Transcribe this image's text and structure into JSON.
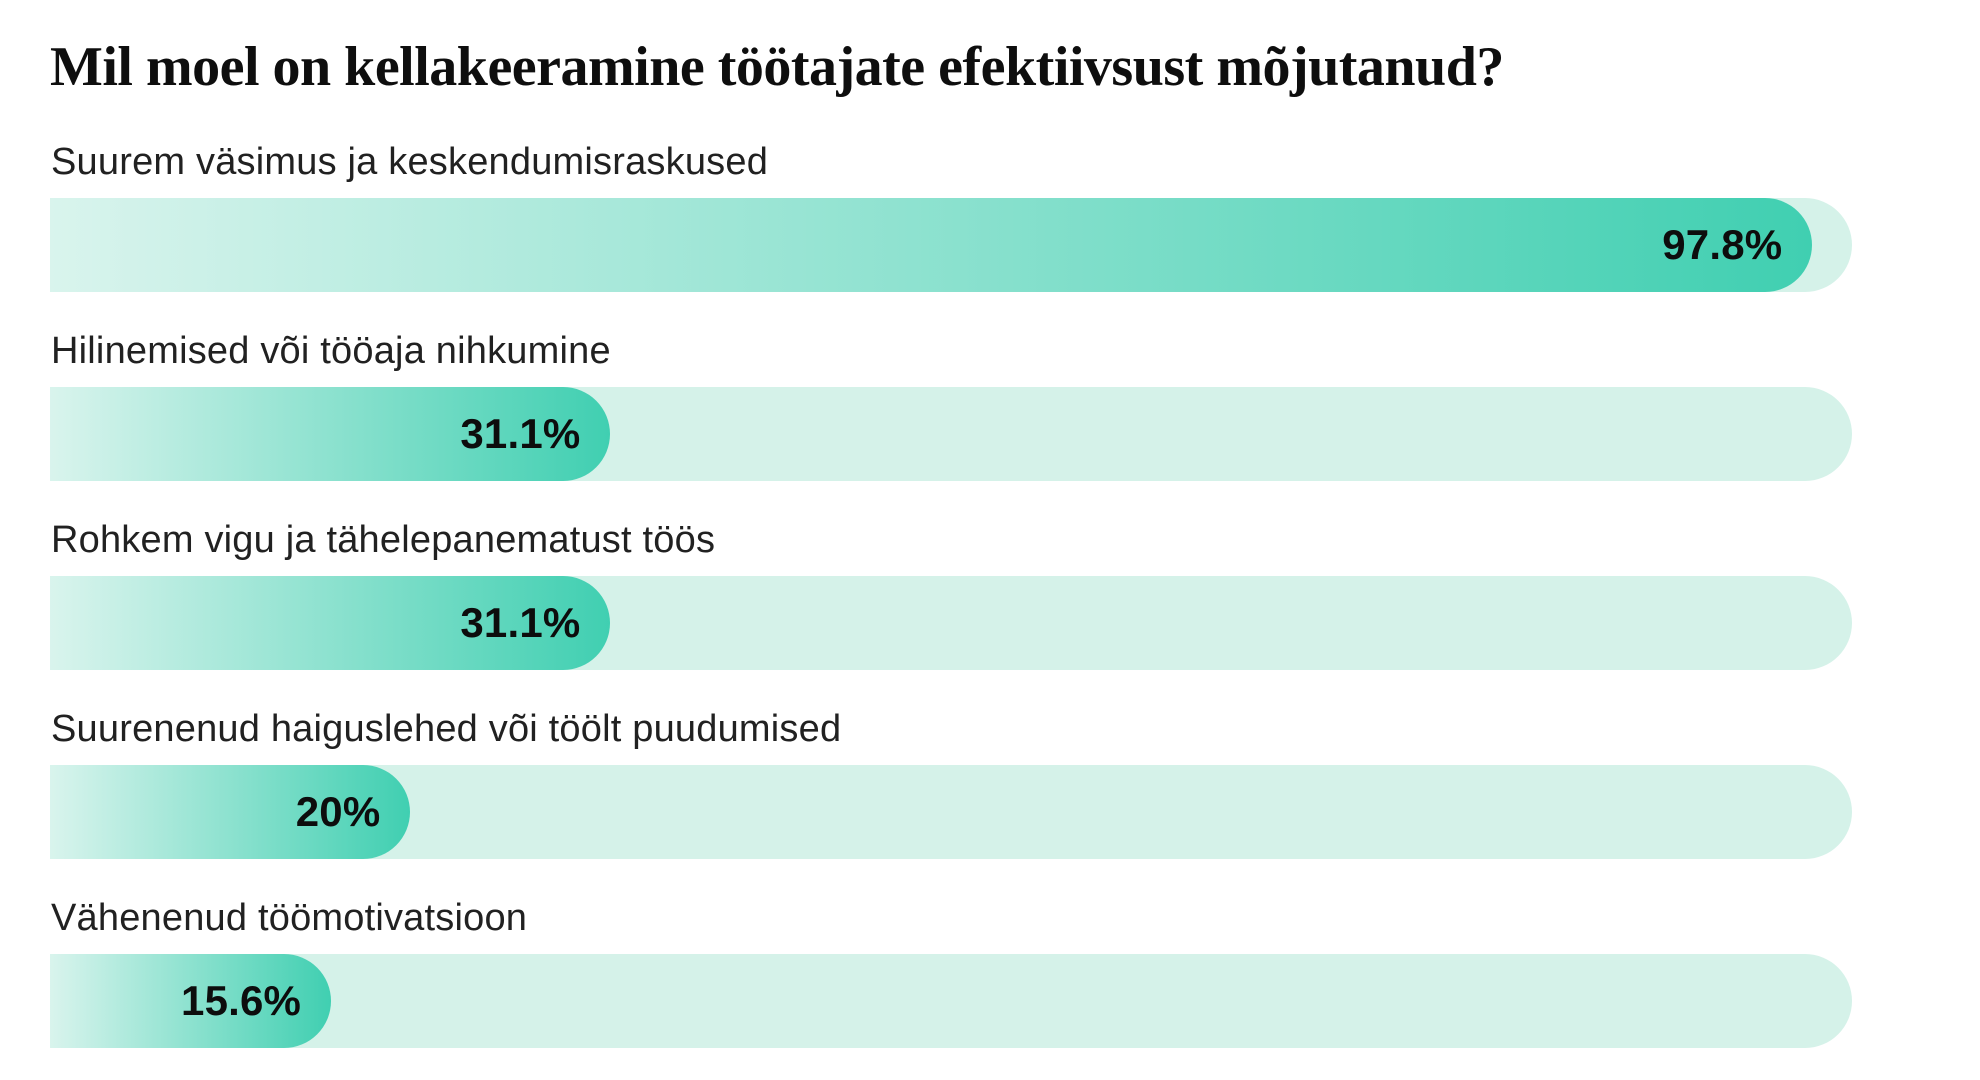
{
  "title": "Mil moel on kellakeeramine töötajate efektiivsust mõjutanud?",
  "colors": {
    "background": "#ffffff",
    "track": "#d5f2e9",
    "fill_gradient_start": "#d9f4ed",
    "fill_gradient_end": "#40cfb1",
    "title_text": "#0e0e0e",
    "label_text": "#212121",
    "value_text": "#0d0d0d"
  },
  "chart_data": {
    "type": "bar",
    "orientation": "horizontal",
    "title": "Mil moel on kellakeeramine töötajate efektiivsust mõjutanud?",
    "categories": [
      "Suurem väsimus ja keskendumisraskused",
      "Hilinemised või tööaja nihkumine",
      "Rohkem vigu ja tähelepanematust töös",
      "Suurenenud haiguslehed või töölt puudumised",
      "Vähenenud töömotivatsioon"
    ],
    "values": [
      97.8,
      31.1,
      31.1,
      20,
      15.6
    ],
    "value_labels": [
      "97.8%",
      "31.1%",
      "31.1%",
      "20%",
      "15.6%"
    ],
    "xlabel": "",
    "ylabel": "",
    "xlim": [
      0,
      100
    ],
    "grid": false,
    "legend": false,
    "value_label_position": "inside-end",
    "bar_style": "gradient-capsule-right"
  }
}
